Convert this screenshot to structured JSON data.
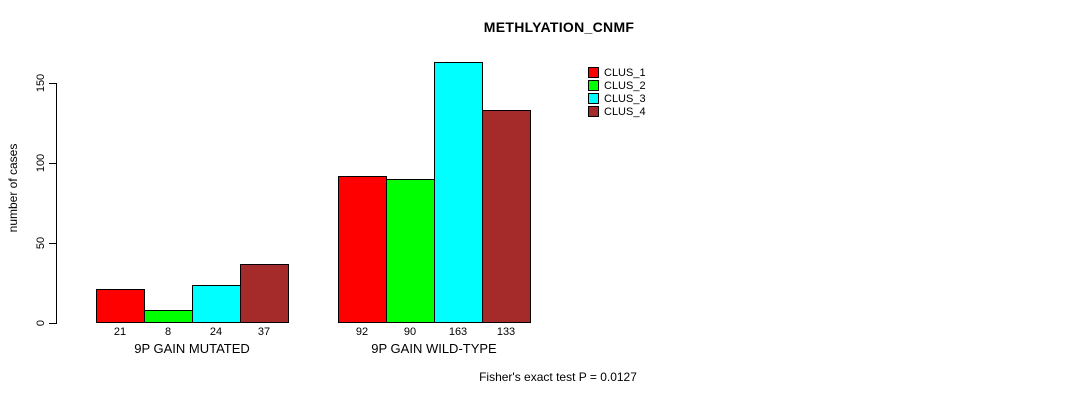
{
  "title": "METHLYATION_CNMF",
  "ylabel": "number of cases",
  "footer": "Fisher's exact test P = 0.0127",
  "chart_data": {
    "type": "bar",
    "title": "METHLYATION_CNMF",
    "ylabel": "number of cases",
    "xlabel": "",
    "categories": [
      "9P GAIN MUTATED",
      "9P GAIN WILD-TYPE"
    ],
    "series": [
      {
        "name": "CLUS_1",
        "color": "#ff0000",
        "values": [
          21,
          92
        ]
      },
      {
        "name": "CLUS_2",
        "color": "#00ff00",
        "values": [
          8,
          90
        ]
      },
      {
        "name": "CLUS_3",
        "color": "#00ffff",
        "values": [
          24,
          163
        ]
      },
      {
        "name": "CLUS_4",
        "color": "#a52a2a",
        "values": [
          37,
          133
        ]
      }
    ],
    "bar_value_labels_shown": true,
    "yticks": [
      0,
      50,
      100,
      150
    ],
    "ylim": [
      0,
      170
    ],
    "grid": false,
    "legend_position": "top-right",
    "annotation": "Fisher's exact test P = 0.0127"
  }
}
